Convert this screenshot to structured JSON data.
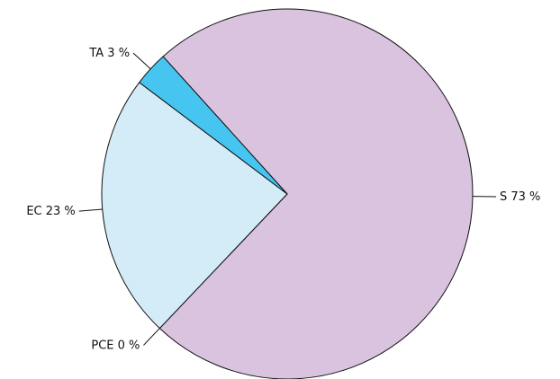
{
  "chart_data": {
    "type": "pie",
    "categories": [
      "S",
      "PCE",
      "EC",
      "TA"
    ],
    "values": [
      73,
      0,
      23,
      3
    ],
    "value_labels": [
      "73 %",
      "0 %",
      "23 %",
      "3 %"
    ],
    "colors": [
      "#d9c3df",
      "#e8e0ea",
      "#d3ecf8",
      "#45c5f0"
    ]
  }
}
